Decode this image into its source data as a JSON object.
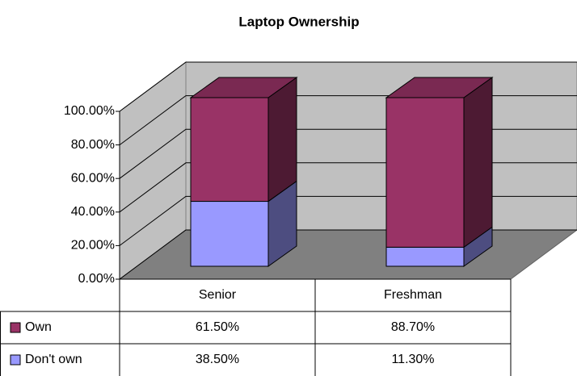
{
  "chart_data": {
    "type": "bar3d_stacked",
    "title": "Laptop Ownership",
    "categories": [
      "Senior",
      "Freshman"
    ],
    "series": [
      {
        "name": "Own",
        "color": "#993366",
        "values": [
          61.5,
          88.7
        ],
        "value_labels": [
          "61.50%",
          "88.70%"
        ]
      },
      {
        "name": "Don't own",
        "color": "#9999ff",
        "values": [
          38.5,
          11.3
        ],
        "value_labels": [
          "38.50%",
          "11.30%"
        ]
      }
    ],
    "ylim": [
      0,
      100
    ],
    "yticks": [
      {
        "value": 0,
        "label": "0.00%"
      },
      {
        "value": 20,
        "label": "20.00%"
      },
      {
        "value": 40,
        "label": "40.00%"
      },
      {
        "value": 60,
        "label": "60.00%"
      },
      {
        "value": 80,
        "label": "80.00%"
      },
      {
        "value": 100,
        "label": "100.00%"
      }
    ],
    "grid": true
  }
}
